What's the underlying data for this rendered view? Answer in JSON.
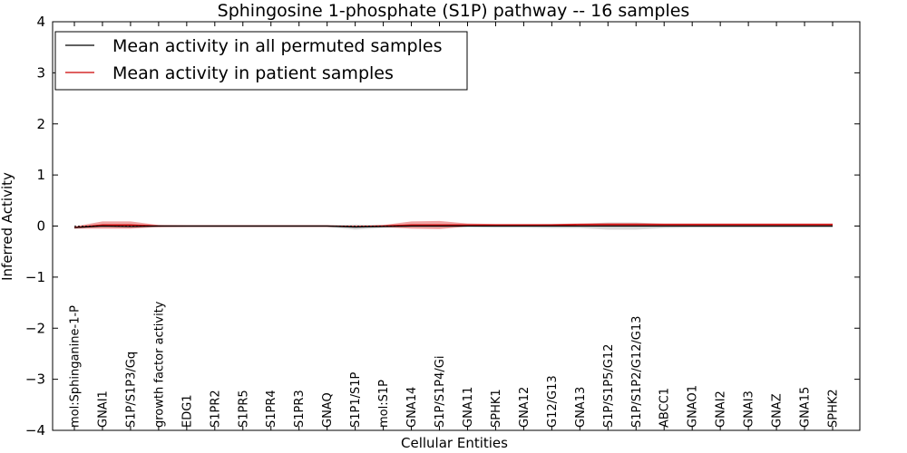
{
  "chart_data": {
    "type": "line",
    "title": "Sphingosine 1-phosphate (S1P) pathway -- 16 samples",
    "xlabel": "Cellular Entities",
    "ylabel": "Inferred Activity",
    "ylim": [
      -4,
      4
    ],
    "yticks": [
      4,
      3,
      2,
      1,
      0,
      -1,
      -2,
      -3,
      -4
    ],
    "ytick_labels": [
      "4",
      "3",
      "2",
      "1",
      "0",
      "−1",
      "−2",
      "−3",
      "−4"
    ],
    "legend_position": "top-left",
    "categories": [
      "mol:Sphinganine-1-P",
      "GNAI1",
      "S1P/S1P3/Gq",
      "growth factor activity",
      "EDG1",
      "S1PR2",
      "S1PR5",
      "S1PR4",
      "S1PR3",
      "GNAQ",
      "S1P1/S1P",
      "mol:S1P",
      "GNA14",
      "S1P/S1P4/Gi",
      "GNA11",
      "SPHK1",
      "GNA12",
      "G12/G13",
      "GNA13",
      "S1P/S1P5/G12",
      "S1P/S1P2/G12/G13",
      "ABCC1",
      "GNAO1",
      "GNAI2",
      "GNAI3",
      "GNAZ",
      "GNA15",
      "SPHK2"
    ],
    "series": [
      {
        "name": "Mean activity in all permuted samples",
        "color": "#000000",
        "values": [
          -0.03,
          0.0,
          -0.01,
          0.0,
          0.0,
          0.0,
          0.0,
          0.0,
          0.0,
          0.0,
          -0.02,
          -0.01,
          0.0,
          0.0,
          0.0,
          0.0,
          0.0,
          0.0,
          0.0,
          0.0,
          0.0,
          0.0,
          0.0,
          0.0,
          0.0,
          0.0,
          0.0,
          0.0
        ],
        "band": [
          0.02,
          0.02,
          0.02,
          0.02,
          0.02,
          0.02,
          0.02,
          0.02,
          0.02,
          0.02,
          0.05,
          0.03,
          0.02,
          0.02,
          0.02,
          0.03,
          0.03,
          0.04,
          0.04,
          0.07,
          0.07,
          0.04,
          0.03,
          0.03,
          0.03,
          0.03,
          0.03,
          0.03
        ]
      },
      {
        "name": "Mean activity in patient samples",
        "color": "#cc0000",
        "values": [
          -0.03,
          0.02,
          0.02,
          0.0,
          0.0,
          0.0,
          0.0,
          0.0,
          0.0,
          0.0,
          -0.01,
          0.0,
          0.02,
          0.02,
          0.02,
          0.02,
          0.02,
          0.02,
          0.03,
          0.03,
          0.03,
          0.03,
          0.03,
          0.03,
          0.03,
          0.03,
          0.03,
          0.03
        ],
        "band": [
          0.02,
          0.07,
          0.07,
          0.02,
          0.01,
          0.01,
          0.01,
          0.01,
          0.01,
          0.01,
          0.01,
          0.02,
          0.07,
          0.08,
          0.03,
          0.02,
          0.02,
          0.02,
          0.02,
          0.03,
          0.03,
          0.02,
          0.02,
          0.02,
          0.02,
          0.02,
          0.02,
          0.02
        ]
      }
    ]
  }
}
